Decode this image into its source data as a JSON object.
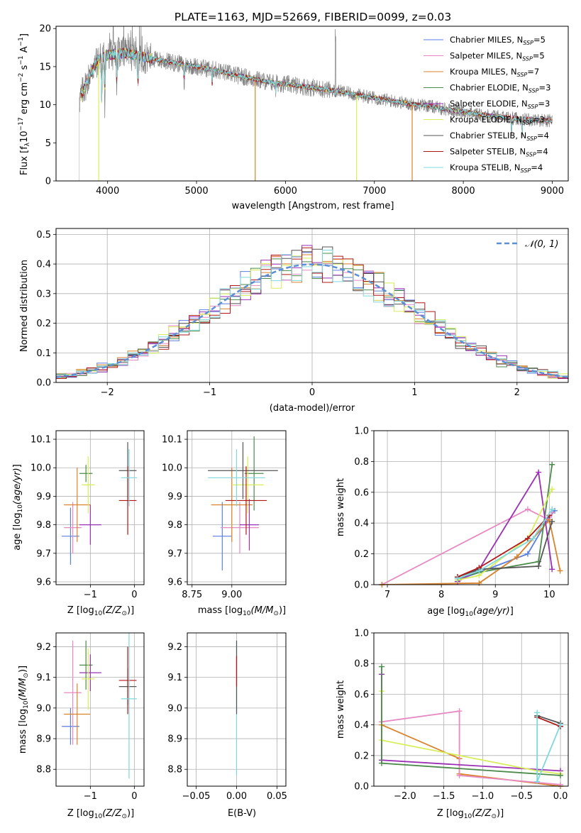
{
  "chart_data": [
    {
      "type": "line",
      "title": "PLATE=1163, MJD=52669, FIBERID=0099, z=0.03",
      "xlabel": "wavelength [Angstrom, rest frame]",
      "ylabel": "Flux [fλ10⁻¹⁷ erg cm⁻² s⁻¹ A⁻¹]",
      "xlim": [
        3420,
        9180
      ],
      "ylim": [
        0,
        20.3
      ],
      "xticks": [
        "4000",
        "5000",
        "6000",
        "7000",
        "8000",
        "9000"
      ],
      "yticks": [
        "0",
        "5",
        "10",
        "15",
        "20"
      ],
      "grid": false,
      "legend_placement": "top-right",
      "series": [
        {
          "name": "Chabrier MILES, N",
          "sub": "SSP",
          "suffix": "=5",
          "color": "#5b7fe0"
        },
        {
          "name": "Salpeter MILES, N",
          "sub": "SSP",
          "suffix": "=5",
          "color": "#e78ac3"
        },
        {
          "name": "Kroupa MILES, N",
          "sub": "SSP",
          "suffix": "=7",
          "color": "#d9822b"
        },
        {
          "name": "Chabrier ELODIE, N",
          "sub": "SSP",
          "suffix": "=3",
          "color": "#4c8a4c"
        },
        {
          "name": "Salpeter ELODIE, N",
          "sub": "SSP",
          "suffix": "=3",
          "color": "#9b30b4"
        },
        {
          "name": "Kroupa ELODIE, N",
          "sub": "SSP",
          "suffix": "=3",
          "color": "#d8ee5a"
        },
        {
          "name": "Chabrier STELIB, N",
          "sub": "SSP",
          "suffix": "=4",
          "color": "#555555"
        },
        {
          "name": "Salpeter STELIB, N",
          "sub": "SSP",
          "suffix": "=4",
          "color": "#b01818"
        },
        {
          "name": "Kroupa STELIB, N",
          "sub": "SSP",
          "suffix": "=4",
          "color": "#7fd8dc"
        }
      ],
      "continuum": [
        [
          3680,
          10.5
        ],
        [
          3800,
          14
        ],
        [
          3900,
          16
        ],
        [
          4000,
          16.5
        ],
        [
          4200,
          16.8
        ],
        [
          4400,
          16.3
        ],
        [
          4600,
          15.8
        ],
        [
          4800,
          15.4
        ],
        [
          5000,
          15
        ],
        [
          5200,
          14.6
        ],
        [
          5400,
          14
        ],
        [
          5600,
          13.5
        ],
        [
          5800,
          13
        ],
        [
          6000,
          12.7
        ],
        [
          6200,
          12.4
        ],
        [
          6400,
          12.1
        ],
        [
          6600,
          11.8
        ],
        [
          6800,
          11.3
        ],
        [
          7000,
          10.9
        ],
        [
          7200,
          10.5
        ],
        [
          7400,
          10.1
        ],
        [
          7600,
          9.9
        ],
        [
          7800,
          9.4
        ],
        [
          8000,
          9.1
        ],
        [
          8200,
          8.7
        ],
        [
          8400,
          8.4
        ],
        [
          8600,
          8.2
        ],
        [
          8800,
          8
        ],
        [
          9000,
          7.9
        ]
      ],
      "absorption_features": [
        [
          3934,
          9.5
        ],
        [
          3968,
          9.5
        ],
        [
          4102,
          12
        ],
        [
          4340,
          11
        ],
        [
          4861,
          12
        ],
        [
          5175,
          12
        ],
        [
          5890,
          11.5
        ],
        [
          6563,
          11
        ],
        [
          8542,
          6
        ],
        [
          8662,
          6
        ]
      ],
      "model_drops": [
        {
          "x": 3900,
          "color": "#d8ee5a"
        },
        {
          "x": 5660,
          "color": "#d9822b"
        },
        {
          "x": 6800,
          "color": "#d8ee5a"
        },
        {
          "x": 7425,
          "color": "#d9822b"
        }
      ]
    },
    {
      "type": "step",
      "xlabel": "(data-model)/error",
      "ylabel": "Normed distribution",
      "xlim": [
        -2.5,
        2.5
      ],
      "ylim": [
        0,
        0.52
      ],
      "xticks": [
        "−2",
        "−1",
        "0",
        "1",
        "2"
      ],
      "yticks": [
        "0.0",
        "0.1",
        "0.2",
        "0.3",
        "0.4",
        "0.5"
      ],
      "grid": true,
      "legend_placement": "top-right",
      "reference_curve": {
        "label": "𝒩(0, 1)",
        "color": "#5b8fd6",
        "style": "dashed"
      }
    },
    {
      "type": "errorbar",
      "xlabel": "Z [log₁₀(Z/Z⊙)]",
      "ylabel": "age  [log₁₀(age/yr)]",
      "xlim": [
        -1.78,
        0.22
      ],
      "ylim": [
        9.59,
        10.13
      ],
      "xticks": [
        "−1",
        "0"
      ],
      "xtick_values": [
        -1,
        0
      ],
      "yticks": [
        "9.6",
        "9.7",
        "9.8",
        "9.9",
        "10.0",
        "10.1"
      ],
      "ytick_values": [
        9.6,
        9.7,
        9.8,
        9.9,
        10.0,
        10.1
      ],
      "points": [
        {
          "color": "#5b7fe0",
          "x": -1.45,
          "xerr": 0.2,
          "y": 9.76,
          "yerr": 0.1
        },
        {
          "color": "#e78ac3",
          "x": -1.4,
          "xerr": 0.2,
          "y": 9.79,
          "yerr": 0.09
        },
        {
          "color": "#d9822b",
          "x": -1.3,
          "xerr": 0.3,
          "y": 9.87,
          "yerr": 0.13
        },
        {
          "color": "#4c8a4c",
          "x": -1.1,
          "xerr": 0.15,
          "y": 9.98,
          "yerr": 0.03
        },
        {
          "color": "#9b30b4",
          "x": -1.0,
          "xerr": 0.25,
          "y": 9.8,
          "yerr": 0.07
        },
        {
          "color": "#d8ee5a",
          "x": -1.05,
          "xerr": 0.15,
          "y": 9.94,
          "yerr": 0.1
        },
        {
          "color": "#555555",
          "x": -0.15,
          "xerr": 0.2,
          "y": 9.99,
          "yerr": 0.1
        },
        {
          "color": "#b01818",
          "x": -0.15,
          "xerr": 0.2,
          "y": 9.885,
          "yerr": 0.12
        },
        {
          "color": "#7fd8dc",
          "x": -0.12,
          "xerr": 0.18,
          "y": 9.965,
          "yerr": 0.1
        }
      ]
    },
    {
      "type": "errorbar",
      "xlabel": "mass [log₁₀(M/M⊙)]",
      "ylabel": "",
      "xlim": [
        8.72,
        9.34
      ],
      "ylim": [
        9.59,
        10.13
      ],
      "xticks": [
        "8.75",
        "9.00"
      ],
      "xtick_values": [
        8.75,
        9.0
      ],
      "yticks": [
        "9.6",
        "9.7",
        "9.8",
        "9.9",
        "10.0",
        "10.1"
      ],
      "ytick_values": [
        9.6,
        9.7,
        9.8,
        9.9,
        10.0,
        10.1
      ],
      "points": [
        {
          "color": "#5b7fe0",
          "x": 8.94,
          "xerr": 0.06,
          "y": 9.76,
          "yerr": 0.12
        },
        {
          "color": "#e78ac3",
          "x": 9.05,
          "xerr": 0.12,
          "y": 9.79,
          "yerr": 0.09
        },
        {
          "color": "#d9822b",
          "x": 9.0,
          "xerr": 0.13,
          "y": 9.87,
          "yerr": 0.13
        },
        {
          "color": "#4c8a4c",
          "x": 9.14,
          "xerr": 0.06,
          "y": 9.98,
          "yerr": 0.13
        },
        {
          "color": "#9b30b4",
          "x": 9.11,
          "xerr": 0.06,
          "y": 9.8,
          "yerr": 0.09
        },
        {
          "color": "#d8ee5a",
          "x": 9.1,
          "xerr": 0.1,
          "y": 9.94,
          "yerr": 0.1
        },
        {
          "color": "#555555",
          "x": 9.07,
          "xerr": 0.22,
          "y": 9.99,
          "yerr": 0.1
        },
        {
          "color": "#b01818",
          "x": 9.09,
          "xerr": 0.13,
          "y": 9.885,
          "yerr": 0.12
        },
        {
          "color": "#7fd8dc",
          "x": 9.03,
          "xerr": 0.18,
          "y": 9.965,
          "yerr": 0.1
        }
      ]
    },
    {
      "type": "line",
      "xlabel": "age  [log₁₀(age/yr)]",
      "ylabel": "mass weight",
      "xlim": [
        6.75,
        10.35
      ],
      "ylim": [
        0,
        1.0
      ],
      "xticks": [
        "7",
        "8",
        "9",
        "10"
      ],
      "xtick_values": [
        7,
        8,
        9,
        10
      ],
      "yticks": [
        "0.0",
        "0.2",
        "0.4",
        "0.6",
        "0.8",
        "1.0"
      ],
      "ytick_values": [
        0,
        0.2,
        0.4,
        0.6,
        0.8,
        1.0
      ],
      "grid": true,
      "series": [
        {
          "color": "#5b7fe0",
          "points": [
            [
              8.3,
              0.03
            ],
            [
              8.7,
              0.08
            ],
            [
              9.6,
              0.2
            ],
            [
              10.0,
              0.44
            ],
            [
              10.1,
              0.48
            ]
          ]
        },
        {
          "color": "#e78ac3",
          "points": [
            [
              6.9,
              0.0
            ],
            [
              9.6,
              0.49
            ],
            [
              10.0,
              0.42
            ],
            [
              10.05,
              0.47
            ]
          ]
        },
        {
          "color": "#d9822b",
          "points": [
            [
              6.9,
              0.0
            ],
            [
              8.7,
              0.01
            ],
            [
              9.4,
              0.18
            ],
            [
              10.0,
              0.42
            ],
            [
              10.2,
              0.09
            ]
          ]
        },
        {
          "color": "#4c8a4c",
          "points": [
            [
              8.3,
              0.04
            ],
            [
              8.7,
              0.08
            ],
            [
              9.8,
              0.15
            ],
            [
              10.05,
              0.78
            ]
          ]
        },
        {
          "color": "#9b30b4",
          "points": [
            [
              8.3,
              0.02
            ],
            [
              8.7,
              0.1
            ],
            [
              9.8,
              0.73
            ],
            [
              10.05,
              0.1
            ]
          ]
        },
        {
          "color": "#d8ee5a",
          "points": [
            [
              8.3,
              0.03
            ],
            [
              8.7,
              0.06
            ],
            [
              9.6,
              0.3
            ],
            [
              10.05,
              0.62
            ]
          ]
        },
        {
          "color": "#555555",
          "points": [
            [
              8.3,
              0.05
            ],
            [
              8.7,
              0.1
            ],
            [
              9.8,
              0.12
            ],
            [
              10.05,
              0.41
            ]
          ]
        },
        {
          "color": "#b01818",
          "points": [
            [
              8.3,
              0.05
            ],
            [
              8.7,
              0.11
            ],
            [
              9.6,
              0.3
            ],
            [
              10.0,
              0.45
            ]
          ]
        },
        {
          "color": "#7fd8dc",
          "points": [
            [
              8.3,
              0.04
            ],
            [
              8.7,
              0.09
            ],
            [
              9.7,
              0.3
            ],
            [
              10.05,
              0.49
            ]
          ]
        }
      ]
    },
    {
      "type": "errorbar",
      "xlabel": "Z [log₁₀(Z/Z⊙)]",
      "ylabel": "mass [log₁₀(M/M⊙)]",
      "xlim": [
        -1.78,
        0.22
      ],
      "ylim": [
        8.745,
        9.245
      ],
      "xticks": [
        "−1",
        "0"
      ],
      "xtick_values": [
        -1,
        0
      ],
      "yticks": [
        "8.8",
        "8.9",
        "9.0",
        "9.1",
        "9.2"
      ],
      "ytick_values": [
        8.8,
        8.9,
        9.0,
        9.1,
        9.2
      ],
      "points": [
        {
          "color": "#5b7fe0",
          "x": -1.45,
          "xerr": 0.2,
          "y": 8.94,
          "yerr": 0.06
        },
        {
          "color": "#e78ac3",
          "x": -1.4,
          "xerr": 0.2,
          "y": 9.05,
          "yerr": 0.17
        },
        {
          "color": "#d9822b",
          "x": -1.3,
          "xerr": 0.3,
          "y": 8.98,
          "yerr": 0.1
        },
        {
          "color": "#4c8a4c",
          "x": -1.1,
          "xerr": 0.15,
          "y": 9.14,
          "yerr": 0.08
        },
        {
          "color": "#9b30b4",
          "x": -1.0,
          "xerr": 0.25,
          "y": 9.115,
          "yerr": 0.06
        },
        {
          "color": "#d8ee5a",
          "x": -1.05,
          "xerr": 0.15,
          "y": 9.095,
          "yerr": 0.1
        },
        {
          "color": "#555555",
          "x": -0.15,
          "xerr": 0.2,
          "y": 9.07,
          "yerr": 0.06
        },
        {
          "color": "#b01818",
          "x": -0.15,
          "xerr": 0.2,
          "y": 9.09,
          "yerr": 0.11
        },
        {
          "color": "#7fd8dc",
          "x": -0.12,
          "xerr": 0.18,
          "y": 9.03,
          "yerr": 0.26
        }
      ]
    },
    {
      "type": "errorbar",
      "xlabel": "E(B-V)",
      "ylabel": "",
      "xlim": [
        -0.061,
        0.061
      ],
      "ylim": [
        8.745,
        9.245
      ],
      "xticks": [
        "−0.05",
        "0.00",
        "0.05"
      ],
      "xtick_values": [
        -0.05,
        0,
        0.05
      ],
      "yticks": [
        "8.8",
        "8.9",
        "9.0",
        "9.1",
        "9.2"
      ],
      "ytick_values": [
        8.8,
        8.9,
        9.0,
        9.1,
        9.2
      ],
      "points": [
        {
          "color": "#7fd8dc",
          "x": 0.0,
          "xerr": 0.0,
          "y": 9.0,
          "yerr": 0.22
        },
        {
          "color": "#555555",
          "x": 0.0,
          "xerr": 0.0,
          "y": 9.1,
          "yerr": 0.12
        },
        {
          "color": "#b01818",
          "x": 0.0,
          "xerr": 0.0,
          "y": 9.12,
          "yerr": 0.05
        }
      ]
    },
    {
      "type": "line",
      "xlabel": "Z [log₁₀(Z/Z⊙)]",
      "ylabel": "mass weight",
      "xlim": [
        -2.4,
        0.1
      ],
      "ylim": [
        0,
        1.0
      ],
      "xticks": [
        "−2.0",
        "−1.5",
        "−1.0",
        "−0.5",
        "0.0"
      ],
      "xtick_values": [
        -2,
        -1.5,
        -1,
        -0.5,
        0
      ],
      "yticks": [
        "0.0",
        "0.2",
        "0.4",
        "0.6",
        "0.8",
        "1.0"
      ],
      "ytick_values": [
        0,
        0.2,
        0.4,
        0.6,
        0.8,
        1.0
      ],
      "grid": true,
      "series": [
        {
          "color": "#d9822b",
          "points": [
            [
              -2.3,
              0.4
            ],
            [
              -1.3,
              0.18
            ],
            [
              -1.3,
              0.08
            ],
            [
              0.0,
              0.0
            ]
          ]
        },
        {
          "color": "#e78ac3",
          "points": [
            [
              -2.3,
              0.42
            ],
            [
              -1.3,
              0.49
            ],
            [
              -1.3,
              0.07
            ],
            [
              0.0,
              0.01
            ]
          ]
        },
        {
          "color": "#9b30b4",
          "points": [
            [
              -2.3,
              0.73
            ],
            [
              -2.3,
              0.17
            ],
            [
              0.0,
              0.1
            ]
          ]
        },
        {
          "color": "#d8ee5a",
          "points": [
            [
              -2.3,
              0.62
            ],
            [
              -2.3,
              0.3
            ],
            [
              -0.3,
              0.1
            ],
            [
              0.0,
              0.08
            ]
          ]
        },
        {
          "color": "#4c8a4c",
          "points": [
            [
              -2.3,
              0.78
            ],
            [
              -2.3,
              0.15
            ],
            [
              0.0,
              0.07
            ]
          ]
        },
        {
          "color": "#555555",
          "points": [
            [
              -0.3,
              0.46
            ],
            [
              0.0,
              0.41
            ]
          ]
        },
        {
          "color": "#b01818",
          "points": [
            [
              -0.3,
              0.45
            ],
            [
              0.0,
              0.39
            ]
          ]
        },
        {
          "color": "#7fd8dc",
          "points": [
            [
              -0.3,
              0.48
            ],
            [
              -0.3,
              0.03
            ],
            [
              0.0,
              0.4
            ]
          ]
        }
      ]
    }
  ]
}
